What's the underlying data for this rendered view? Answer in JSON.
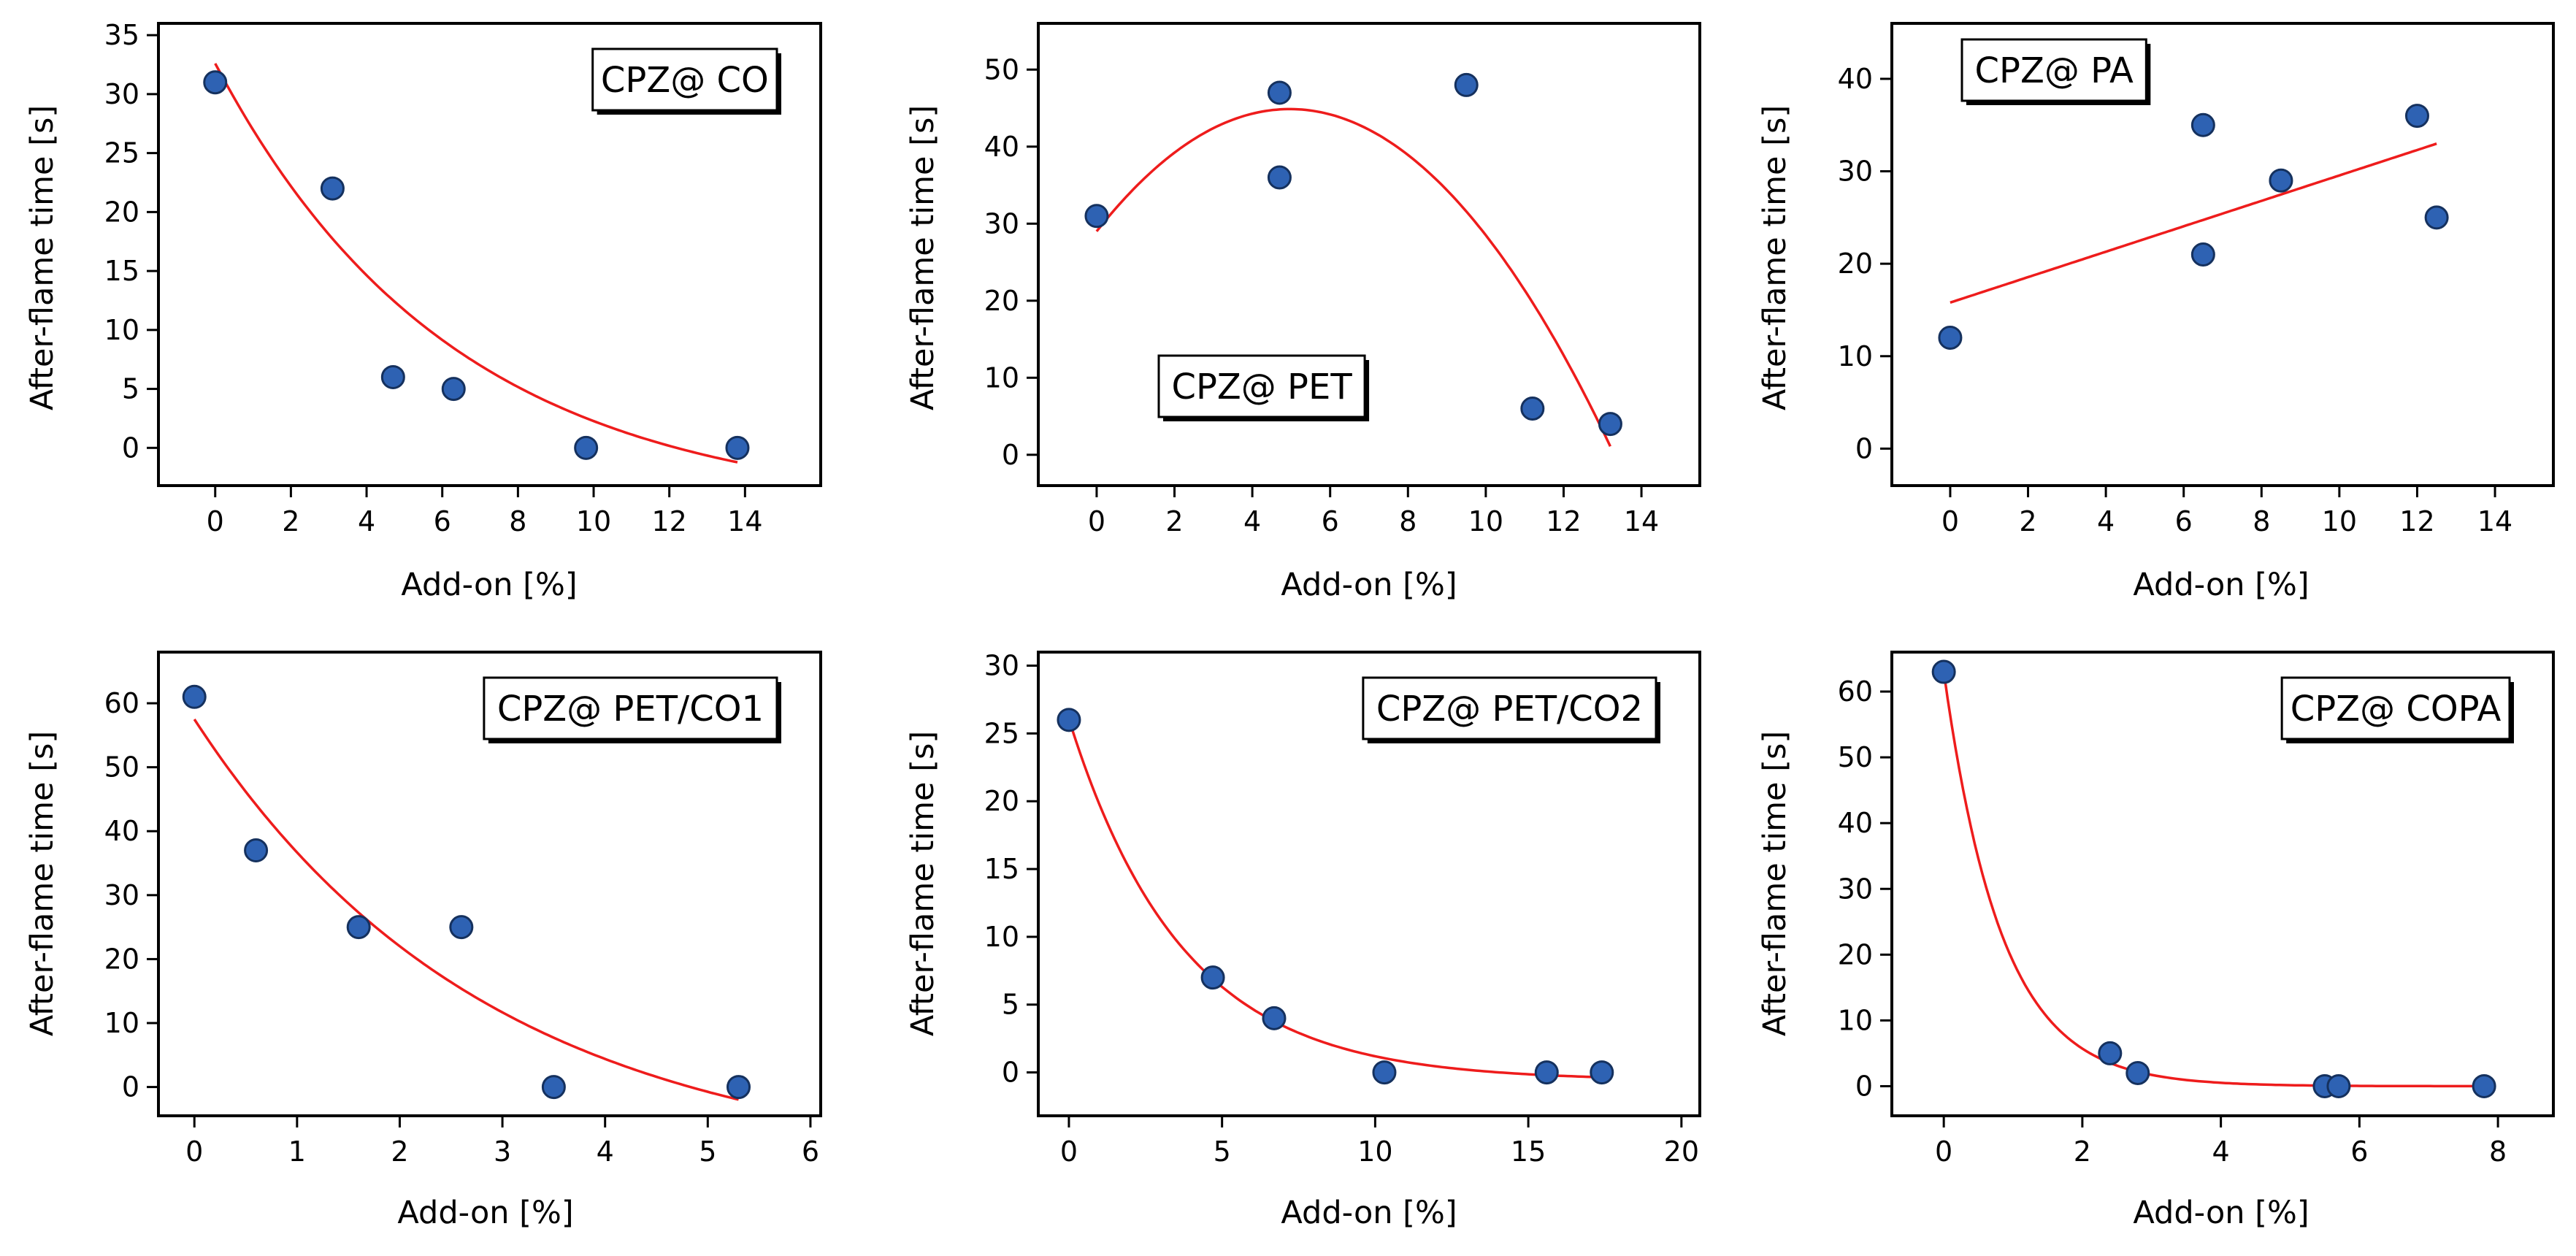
{
  "chart_data": [
    {
      "type": "scatter",
      "title": "CPZ@ CO",
      "label_position": "top-right",
      "xlabel": "Add-on [%]",
      "ylabel": "After-flame time [s]",
      "xlim": [
        -1.5,
        16
      ],
      "ylim": [
        -3.2,
        36
      ],
      "xticks": [
        0,
        2,
        4,
        6,
        8,
        10,
        12,
        14
      ],
      "yticks": [
        0,
        5,
        10,
        15,
        20,
        25,
        30,
        35
      ],
      "points": [
        [
          0,
          31
        ],
        [
          3.1,
          22
        ],
        [
          4.7,
          6
        ],
        [
          6.3,
          5
        ],
        [
          9.8,
          0
        ],
        [
          13.8,
          0
        ]
      ],
      "fit": {
        "model": "exponential",
        "x_range": [
          0,
          13.8
        ],
        "params": {
          "a": 38,
          "b": 0.16,
          "c": -5.4
        }
      },
      "colors": {
        "marker": "#2e62b3",
        "marker_edge": "#15315e",
        "fit": "#ee1c1c"
      }
    },
    {
      "type": "scatter",
      "title": "CPZ@ PET",
      "label_position": "bottom-left",
      "xlabel": "Add-on [%]",
      "ylabel": "After-flame time [s]",
      "xlim": [
        -1.5,
        15.5
      ],
      "ylim": [
        -4,
        56
      ],
      "xticks": [
        0,
        2,
        4,
        6,
        8,
        10,
        12,
        14
      ],
      "yticks": [
        0,
        10,
        20,
        30,
        40,
        50
      ],
      "points": [
        [
          0,
          31
        ],
        [
          4.7,
          47
        ],
        [
          4.7,
          36
        ],
        [
          9.5,
          48
        ],
        [
          11.2,
          6
        ],
        [
          13.2,
          4
        ]
      ],
      "fit": {
        "model": "quadratic",
        "x_range": [
          0,
          13.2
        ],
        "params": {
          "a": -0.645,
          "b": 6.4,
          "c": 29
        }
      },
      "colors": {
        "marker": "#2e62b3",
        "marker_edge": "#15315e",
        "fit": "#ee1c1c"
      }
    },
    {
      "type": "scatter",
      "title": "CPZ@ PA",
      "label_position": "top-left",
      "xlabel": "Add-on [%]",
      "ylabel": "After-flame time [s]",
      "xlim": [
        -1.5,
        15.5
      ],
      "ylim": [
        -4,
        46
      ],
      "xticks": [
        0,
        2,
        4,
        6,
        8,
        10,
        12,
        14
      ],
      "yticks": [
        0,
        10,
        20,
        30,
        40
      ],
      "points": [
        [
          0,
          12
        ],
        [
          6.5,
          35
        ],
        [
          6.5,
          21
        ],
        [
          8.5,
          29
        ],
        [
          12,
          36
        ],
        [
          12.5,
          25
        ]
      ],
      "fit": {
        "model": "linear",
        "x_range": [
          0,
          12.5
        ],
        "params": {
          "a": 1.375,
          "b": 15.8
        }
      },
      "colors": {
        "marker": "#2e62b3",
        "marker_edge": "#15315e",
        "fit": "#ee1c1c"
      }
    },
    {
      "type": "scatter",
      "title": "CPZ@ PET/CO1",
      "label_position": "top-right",
      "xlabel": "Add-on [%]",
      "ylabel": "After-flame time [s]",
      "xlim": [
        -0.35,
        6.1
      ],
      "ylim": [
        -4.5,
        68
      ],
      "xticks": [
        0,
        1,
        2,
        3,
        4,
        5,
        6
      ],
      "yticks": [
        0,
        10,
        20,
        30,
        40,
        50,
        60
      ],
      "points": [
        [
          0,
          61
        ],
        [
          0.6,
          37
        ],
        [
          1.6,
          25
        ],
        [
          2.6,
          25
        ],
        [
          3.5,
          0
        ],
        [
          5.3,
          0
        ]
      ],
      "fit": {
        "model": "exponential",
        "x_range": [
          0,
          5.3
        ],
        "params": {
          "a": 70.5,
          "b": 0.35,
          "c": -13
        }
      },
      "colors": {
        "marker": "#2e62b3",
        "marker_edge": "#15315e",
        "fit": "#ee1c1c"
      }
    },
    {
      "type": "scatter",
      "title": "CPZ@ PET/CO2",
      "label_position": "top-right",
      "xlabel": "Add-on [%]",
      "ylabel": "After-flame time [s]",
      "xlim": [
        -1,
        20.6
      ],
      "ylim": [
        -3.2,
        31
      ],
      "xticks": [
        0,
        5,
        10,
        15,
        20
      ],
      "yticks": [
        0,
        5,
        10,
        15,
        20,
        25,
        30
      ],
      "points": [
        [
          0,
          26
        ],
        [
          4.7,
          7
        ],
        [
          6.7,
          4
        ],
        [
          10.3,
          0
        ],
        [
          15.6,
          0
        ],
        [
          17.4,
          0
        ]
      ],
      "fit": {
        "model": "exponential",
        "x_range": [
          0,
          17.4
        ],
        "params": {
          "a": 26.65,
          "b": 0.27,
          "c": -0.6
        }
      },
      "colors": {
        "marker": "#2e62b3",
        "marker_edge": "#15315e",
        "fit": "#ee1c1c"
      }
    },
    {
      "type": "scatter",
      "title": "CPZ@ COPA",
      "label_position": "top-right",
      "xlabel": "Add-on [%]",
      "ylabel": "After-flame time [s]",
      "xlim": [
        -0.75,
        8.8
      ],
      "ylim": [
        -4.5,
        66
      ],
      "xticks": [
        0,
        2,
        4,
        6,
        8
      ],
      "yticks": [
        0,
        10,
        20,
        30,
        40,
        50,
        60
      ],
      "points": [
        [
          0,
          63
        ],
        [
          2.4,
          5
        ],
        [
          2.8,
          2
        ],
        [
          5.5,
          0
        ],
        [
          5.7,
          0
        ],
        [
          7.8,
          0
        ]
      ],
      "fit": {
        "model": "exponential",
        "x_range": [
          0,
          7.8
        ],
        "params": {
          "a": 63,
          "b": 1.2,
          "c": 0
        }
      },
      "colors": {
        "marker": "#2e62b3",
        "marker_edge": "#15315e",
        "fit": "#ee1c1c"
      }
    }
  ]
}
